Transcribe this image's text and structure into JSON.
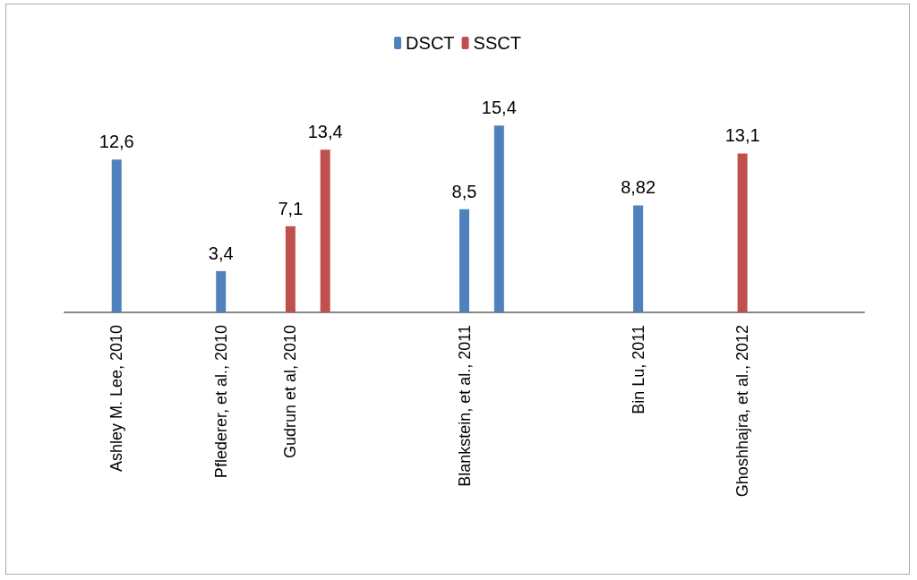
{
  "chart_data": {
    "type": "bar",
    "categories": [
      null,
      "Ashley M. Lee, 2010",
      null,
      null,
      "Pflederer, et al., 2010",
      null,
      "Gudrun et al, 2010",
      null,
      null,
      null,
      null,
      "Blankstein, et al., 2011",
      null,
      null,
      null,
      null,
      "Bin Lu, 2011",
      null,
      null,
      "Ghoshhajra, et al., 2012",
      null,
      null,
      null
    ],
    "series": [
      {
        "name": "DSCT",
        "color": "#4f81bd",
        "values": [
          null,
          12.6,
          null,
          null,
          3.4,
          null,
          null,
          null,
          null,
          null,
          null,
          8.5,
          15.4,
          null,
          null,
          null,
          8.82,
          null,
          null,
          null,
          null,
          null,
          null
        ],
        "value_labels": [
          null,
          "12,6",
          null,
          null,
          "3,4",
          null,
          null,
          null,
          null,
          null,
          null,
          "8,5",
          "15,4",
          null,
          null,
          null,
          "8,82",
          null,
          null,
          null,
          null,
          null,
          null
        ]
      },
      {
        "name": "SSCT",
        "color": "#c0504d",
        "values": [
          null,
          null,
          null,
          null,
          null,
          null,
          7.1,
          13.4,
          null,
          null,
          null,
          null,
          null,
          null,
          null,
          null,
          null,
          null,
          null,
          13.1,
          null,
          null,
          null
        ],
        "value_labels": [
          null,
          null,
          null,
          null,
          null,
          null,
          "7,1",
          "13,4",
          null,
          null,
          null,
          null,
          null,
          null,
          null,
          null,
          null,
          null,
          null,
          "13,1",
          null,
          null,
          null
        ]
      }
    ],
    "legend": "top"
  }
}
